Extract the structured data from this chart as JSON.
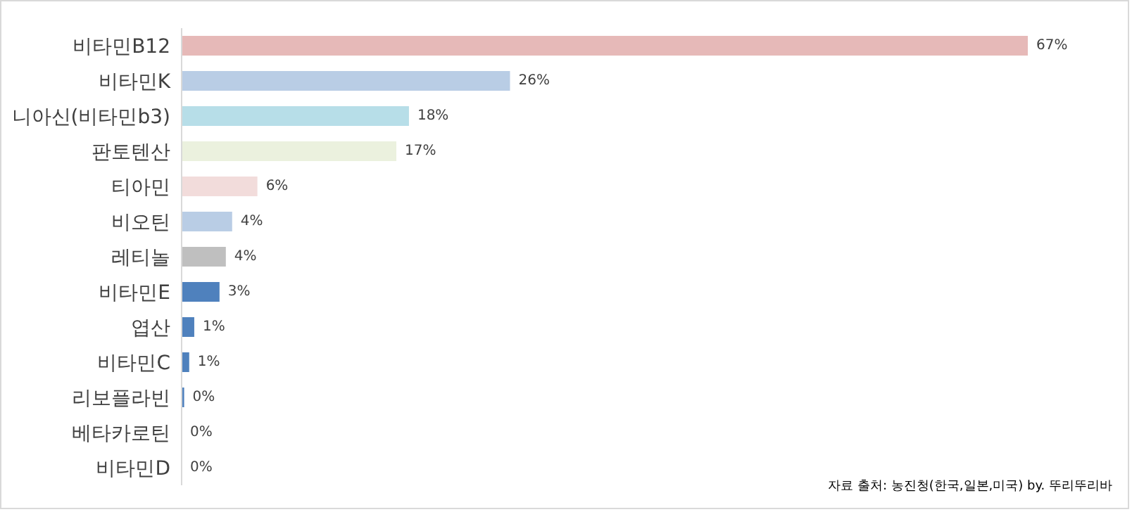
{
  "chart_data": {
    "type": "bar",
    "orientation": "horizontal",
    "categories": [
      "비타민B12",
      "비타민K",
      "니아신(비타민b3)",
      "판토텐산",
      "티아민",
      "비오틴",
      "레티놀",
      "비타민E",
      "엽산",
      "비타민C",
      "리보플라빈",
      "베타카로틴",
      "비타민D"
    ],
    "values": [
      67,
      26,
      18,
      17,
      6,
      4,
      3.5,
      3,
      1,
      0.6,
      0.2,
      0,
      0
    ],
    "colors": [
      "#e6b9b8",
      "#b9cde5",
      "#b7dee8",
      "#ebf1de",
      "#f2dcdb",
      "#b9cde5",
      "#bfbfbf",
      "#4f81bd",
      "#4f81bd",
      "#4f81bd",
      "#4f81bd",
      "#4f81bd",
      "#4f81bd"
    ],
    "value_labels": [
      "67%",
      "26%",
      "18%",
      "17%",
      "6%",
      "4%",
      "4%",
      "3%",
      "1%",
      "1%",
      "0%",
      "0%",
      "0%"
    ],
    "annotations": [
      "자료 출처: 농진청(한국,일본,미국) by. 뚜리뚜리바"
    ],
    "grid": false,
    "legend": false
  }
}
